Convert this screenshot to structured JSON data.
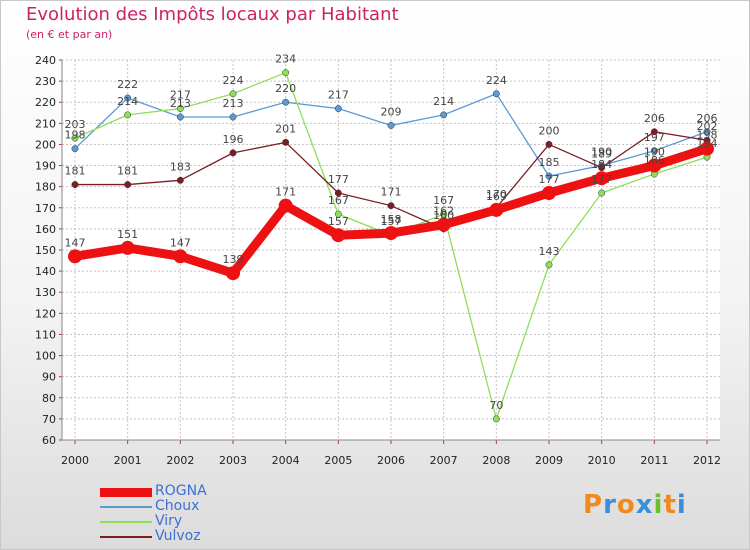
{
  "title": "Evolution des Impôts locaux par Habitant",
  "subtitle": "(en € et par an)",
  "logo": {
    "letters": [
      "P",
      "r",
      "o",
      "x",
      "i",
      "t",
      "i"
    ],
    "colors": [
      "#f08a1c",
      "#3a8fd8",
      "#f08a1c",
      "#3a8fd8",
      "#6cc02a",
      "#f08a1c",
      "#3a8fd8"
    ]
  },
  "chart_data": {
    "type": "line",
    "title": "Evolution des Impôts locaux par Habitant",
    "subtitle": "(en € et par an)",
    "xlabel": "",
    "ylabel": "",
    "ylim": [
      60,
      240
    ],
    "ytick_step": 10,
    "grid": true,
    "legend_position": "bottom-left",
    "x": [
      "2000",
      "2001",
      "2002",
      "2003",
      "2004",
      "2005",
      "2006",
      "2007",
      "2008",
      "2009",
      "2010",
      "2011",
      "2012"
    ],
    "series": [
      {
        "name": "ROGNA",
        "color": "#ee1111",
        "values": [
          147,
          151,
          147,
          139,
          171,
          157,
          158,
          162,
          169,
          177,
          184,
          190,
          198
        ]
      },
      {
        "name": "Choux",
        "color": "#5b9bd5",
        "values": [
          198,
          222,
          213,
          213,
          220,
          217,
          209,
          214,
          224,
          185,
          190,
          197,
          206
        ]
      },
      {
        "name": "Viry",
        "color": "#8ede5a",
        "values": [
          203,
          214,
          217,
          224,
          234,
          167,
          157,
          167,
          70,
          143,
          177,
          186,
          194
        ]
      },
      {
        "name": "Vulvoz",
        "color": "#7a1e24",
        "values": [
          181,
          181,
          183,
          196,
          201,
          177,
          171,
          160,
          170,
          200,
          189,
          206,
          202
        ]
      }
    ]
  }
}
